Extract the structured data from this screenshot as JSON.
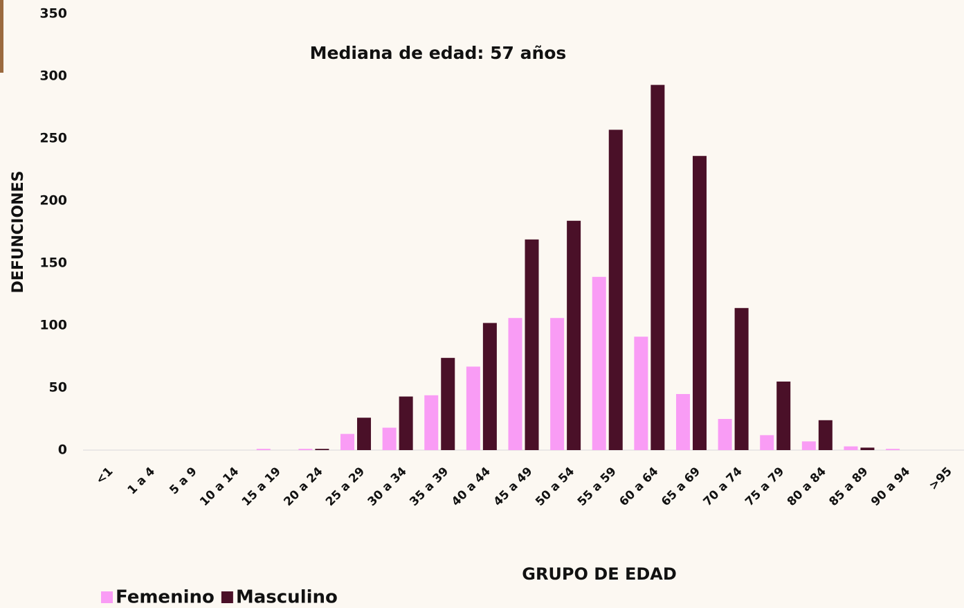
{
  "chart_data": {
    "type": "bar",
    "title": "Mediana de edad: 57 años",
    "x_label": "GRUPO DE EDAD",
    "y_label": "DEFUNCIONES",
    "categories": [
      "<1",
      "1 a 4",
      "5 a 9",
      "10 a 14",
      "15 a 19",
      "20 a 24",
      "25 a 29",
      "30 a 34",
      "35 a 39",
      "40 a 44",
      "45 a 49",
      "50 a 54",
      "55 a 59",
      "60 a 64",
      "65 a 69",
      "70 a 74",
      "75 a 79",
      "80 a 84",
      "85 a 89",
      "90 a 94",
      ">95"
    ],
    "series": [
      {
        "name": "Femenino",
        "color": "#f99cf5",
        "values": [
          0,
          0,
          0,
          0,
          1,
          1,
          13,
          18,
          44,
          67,
          106,
          106,
          139,
          91,
          45,
          25,
          12,
          7,
          3,
          1,
          0
        ]
      },
      {
        "name": "Masculino",
        "color": "#4a1028",
        "values": [
          0,
          0,
          0,
          0,
          0,
          1,
          26,
          43,
          74,
          102,
          169,
          184,
          257,
          293,
          236,
          114,
          55,
          24,
          2,
          0,
          0
        ]
      }
    ],
    "ylim": [
      0,
      350
    ],
    "yticks": [
      0,
      50,
      100,
      150,
      200,
      250,
      300,
      350
    ],
    "grid": false,
    "legend": "bottom-left"
  }
}
